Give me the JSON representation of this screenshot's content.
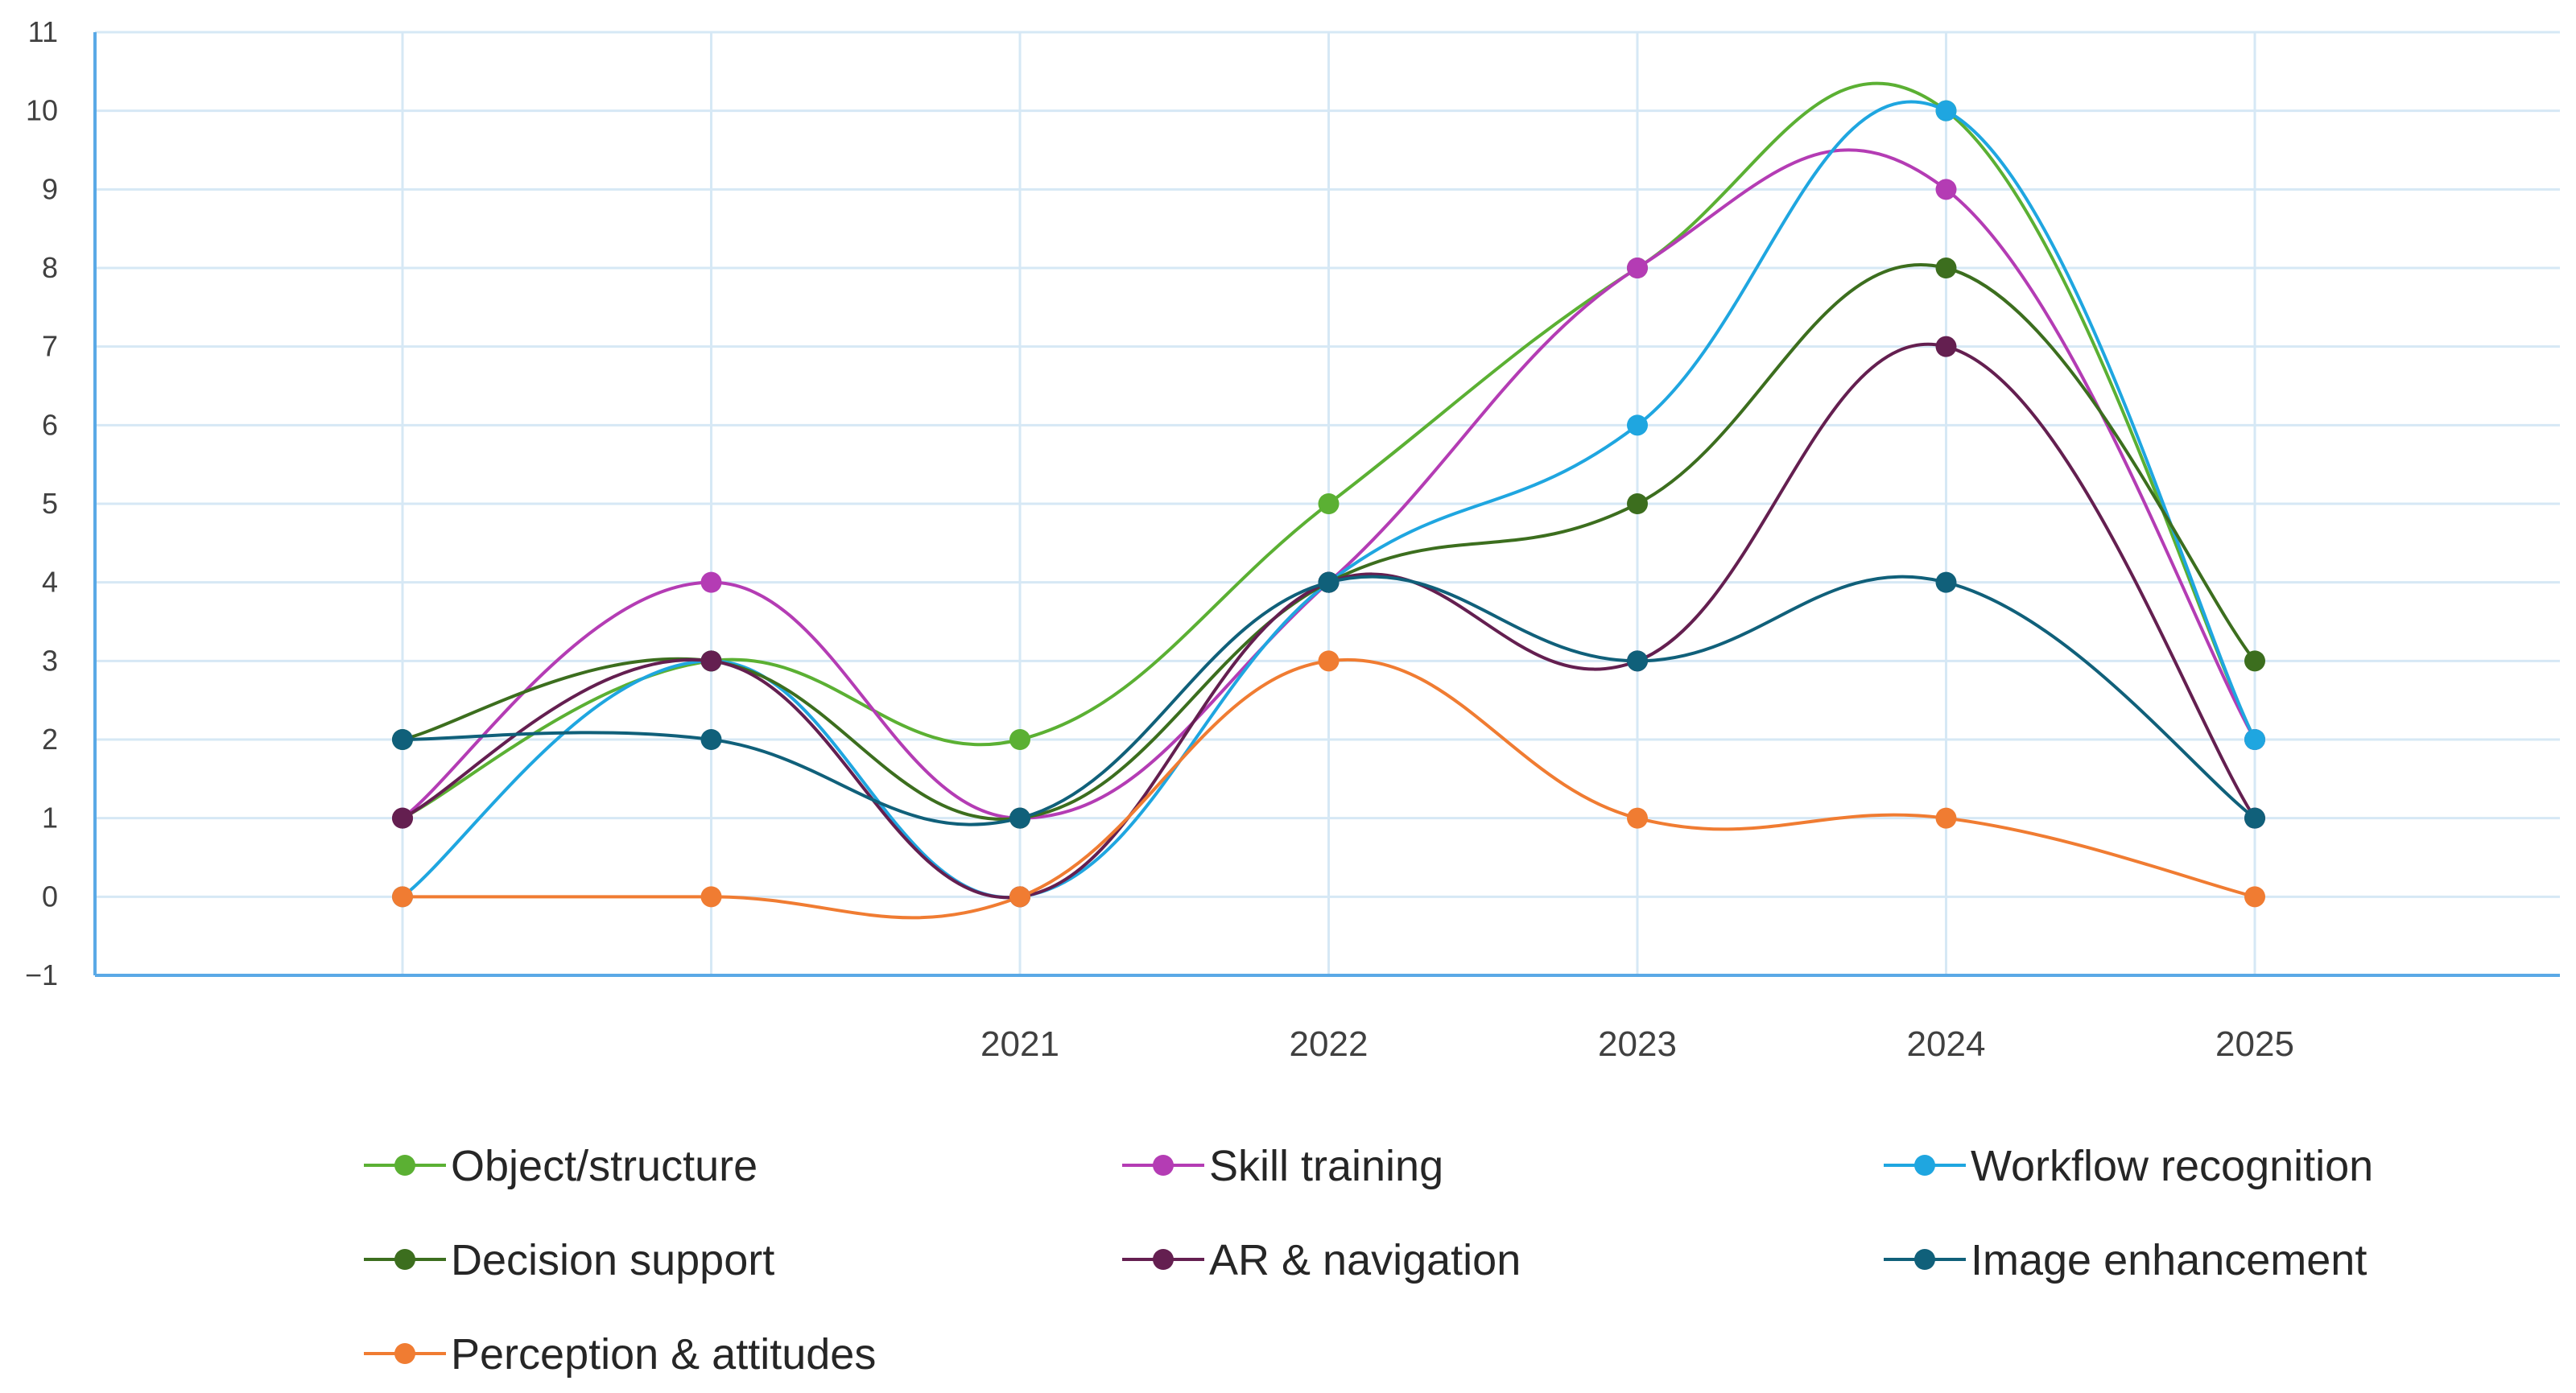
{
  "chart_data": {
    "type": "line",
    "title": "",
    "xlabel": "",
    "ylabel": "",
    "x_positions": [
      2019,
      2020,
      2021,
      2022,
      2023,
      2024,
      2025
    ],
    "x_tick_labels": [
      "",
      "",
      "2021",
      "2022",
      "2023",
      "2024",
      "2025"
    ],
    "y_ticks": [
      "11",
      "10",
      "9",
      "8",
      "7",
      "6",
      "5",
      "4",
      "3",
      "2",
      "1",
      "0",
      "−1"
    ],
    "ylim": [
      -1,
      11
    ],
    "grid": true,
    "smooth": true,
    "legend_position": "bottom",
    "series": [
      {
        "name": "Object/structure",
        "color": "#5bb033",
        "values": [
          1,
          3,
          2,
          5,
          8,
          10,
          2
        ]
      },
      {
        "name": "Skill training",
        "color": "#b43cb4",
        "values": [
          1,
          4,
          1,
          4,
          8,
          9,
          2
        ]
      },
      {
        "name": "Workflow recognition",
        "color": "#1fa6e0",
        "values": [
          0,
          3,
          0,
          4,
          6,
          10,
          2
        ]
      },
      {
        "name": "Decision support",
        "color": "#3c6e1e",
        "values": [
          2,
          3,
          1,
          4,
          5,
          8,
          3
        ]
      },
      {
        "name": "AR & navigation",
        "color": "#641f50",
        "values": [
          1,
          3,
          0,
          4,
          3,
          7,
          1
        ]
      },
      {
        "name": "Image enhancement",
        "color": "#10607a",
        "values": [
          2,
          2,
          1,
          4,
          3,
          4,
          1
        ]
      },
      {
        "name": "Perception & attitudes",
        "color": "#f07c32",
        "values": [
          0,
          0,
          0,
          3,
          1,
          1,
          0
        ]
      }
    ]
  }
}
